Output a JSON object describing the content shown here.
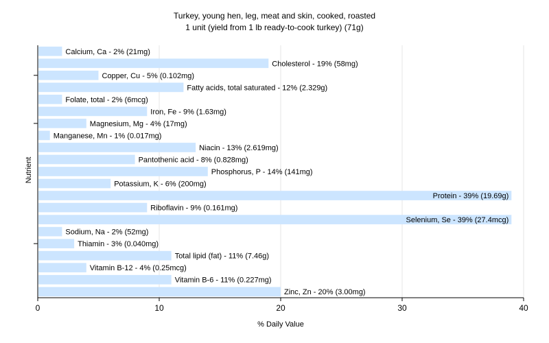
{
  "chart_data": {
    "type": "bar",
    "orientation": "horizontal",
    "title": "Turkey, young hen, leg, meat and skin, cooked, roasted",
    "subtitle": "1 unit (yield from 1 lb ready-to-cook turkey) (71g)",
    "xlabel": "% Daily Value",
    "ylabel": "Nutrient",
    "xlim": [
      0,
      40
    ],
    "xticks": [
      0,
      10,
      20,
      30,
      40
    ],
    "grid": true,
    "bar_color": "#cce5ff",
    "categories": [
      "Calcium, Ca",
      "Cholesterol",
      "Copper, Cu",
      "Fatty acids, total saturated",
      "Folate, total",
      "Iron, Fe",
      "Magnesium, Mg",
      "Manganese, Mn",
      "Niacin",
      "Pantothenic acid",
      "Phosphorus, P",
      "Potassium, K",
      "Protein",
      "Riboflavin",
      "Selenium, Se",
      "Sodium, Na",
      "Thiamin",
      "Total lipid (fat)",
      "Vitamin B-12",
      "Vitamin B-6",
      "Zinc, Zn"
    ],
    "values": [
      2,
      19,
      5,
      12,
      2,
      9,
      4,
      1,
      13,
      8,
      14,
      6,
      39,
      9,
      39,
      2,
      3,
      11,
      4,
      11,
      20
    ],
    "labels": [
      "Calcium, Ca - 2% (21mg)",
      "Cholesterol - 19% (58mg)",
      "Copper, Cu - 5% (0.102mg)",
      "Fatty acids, total saturated - 12% (2.329g)",
      "Folate, total - 2% (6mcg)",
      "Iron, Fe - 9% (1.63mg)",
      "Magnesium, Mg - 4% (17mg)",
      "Manganese, Mn - 1% (0.017mg)",
      "Niacin - 13% (2.619mg)",
      "Pantothenic acid - 8% (0.828mg)",
      "Phosphorus, P - 14% (141mg)",
      "Potassium, K - 6% (200mg)",
      "Protein - 39% (19.69g)",
      "Riboflavin - 9% (0.161mg)",
      "Selenium, Se - 39% (27.4mcg)",
      "Sodium, Na - 2% (52mg)",
      "Thiamin - 3% (0.040mg)",
      "Total lipid (fat) - 11% (7.46g)",
      "Vitamin B-12 - 4% (0.25mcg)",
      "Vitamin B-6 - 11% (0.227mg)",
      "Zinc, Zn - 20% (3.00mg)"
    ]
  }
}
